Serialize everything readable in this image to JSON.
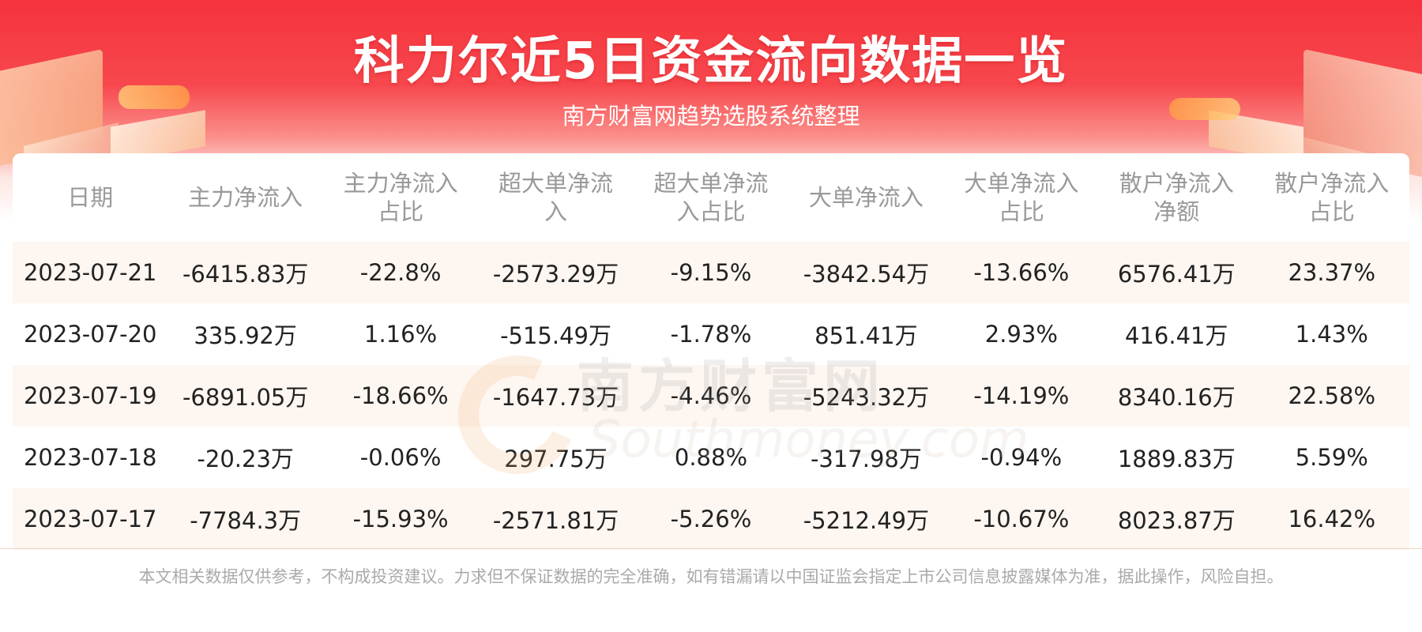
{
  "banner": {
    "title": "科力尔近5日资金流向数据一览",
    "subtitle": "南方财富网趋势选股系统整理",
    "watermark_cn": "南方财富网",
    "watermark_en": "Southmoney.com"
  },
  "colors": {
    "banner_red": "#f5333c",
    "odd_row_bg": "#fdf6f1",
    "header_text": "#999999",
    "body_text": "#222222"
  },
  "chart_data": {
    "type": "table",
    "columns": [
      "日期",
      "主力净流入",
      "主力净流入占比",
      "超大单净流入",
      "超大单净流入占比",
      "大单净流入",
      "大单净流入占比",
      "散户净流入净额",
      "散户净流入占比"
    ],
    "header_lines": [
      [
        "日期",
        ""
      ],
      [
        "主力净流入",
        ""
      ],
      [
        "主力净流入",
        "占比"
      ],
      [
        "超大单净流",
        "入"
      ],
      [
        "超大单净流",
        "入占比"
      ],
      [
        "大单净流入",
        ""
      ],
      [
        "大单净流入",
        "占比"
      ],
      [
        "散户净流入",
        "净额"
      ],
      [
        "散户净流入",
        "占比"
      ]
    ],
    "rows": [
      [
        "2023-07-21",
        "-6415.83万",
        "-22.8%",
        "-2573.29万",
        "-9.15%",
        "-3842.54万",
        "-13.66%",
        "6576.41万",
        "23.37%"
      ],
      [
        "2023-07-20",
        "335.92万",
        "1.16%",
        "-515.49万",
        "-1.78%",
        "851.41万",
        "2.93%",
        "416.41万",
        "1.43%"
      ],
      [
        "2023-07-19",
        "-6891.05万",
        "-18.66%",
        "-1647.73万",
        "-4.46%",
        "-5243.32万",
        "-14.19%",
        "8340.16万",
        "22.58%"
      ],
      [
        "2023-07-18",
        "-20.23万",
        "-0.06%",
        "297.75万",
        "0.88%",
        "-317.98万",
        "-0.94%",
        "1889.83万",
        "5.59%"
      ],
      [
        "2023-07-17",
        "-7784.3万",
        "-15.93%",
        "-2571.81万",
        "-5.26%",
        "-5212.49万",
        "-10.67%",
        "8023.87万",
        "16.42%"
      ]
    ]
  },
  "footer": {
    "disclaimer": "本文相关数据仅供参考，不构成投资建议。力求但不保证数据的完全准确，如有错漏请以中国证监会指定上市公司信息披露媒体为准，据此操作，风险自担。"
  }
}
